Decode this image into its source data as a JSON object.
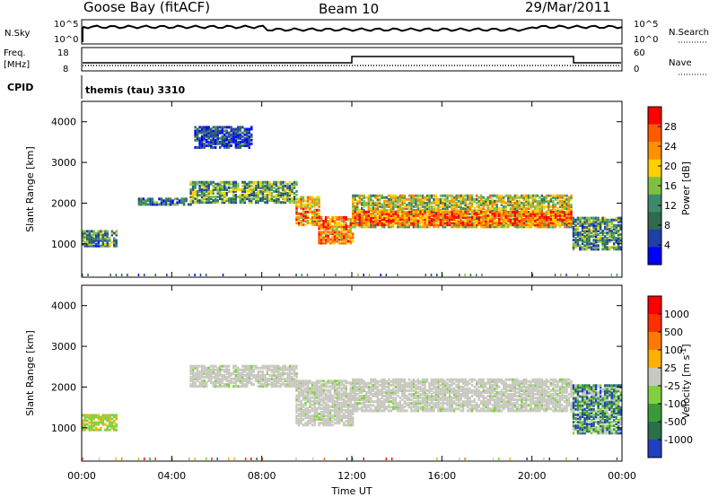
{
  "header": {
    "station": "Goose Bay (fitACF)",
    "beam": "Beam 10",
    "date": "29/Mar/2011"
  },
  "summary_panel": {
    "left_label_1": "N.Sky",
    "left_ticks_1": [
      "10^5",
      "10^0"
    ],
    "right_ticks_1": [
      "10^5",
      "10^0"
    ],
    "right_label_1": "N.Search",
    "left_label_2a": "Freq.",
    "left_label_2b": "[MHz]",
    "left_ticks_2": [
      "18",
      "8"
    ],
    "right_ticks_2": [
      "60",
      "0"
    ],
    "right_label_2": "Nave",
    "cpid_label": "CPID",
    "cpid_value": "themis (tau) 3310"
  },
  "colors": {
    "power_scale": [
      "#0000ff",
      "#1f3fa8",
      "#2e6a50",
      "#3d8a6a",
      "#80c040",
      "#ffd000",
      "#ff9000",
      "#ff5a00",
      "#ff0000"
    ],
    "velocity_scale": [
      "#2040c0",
      "#2a6e4a",
      "#3a9a3a",
      "#80d040",
      "#c8c8c0",
      "#ffb000",
      "#ff7a00",
      "#ff3000",
      "#ff0000"
    ]
  },
  "chart_data": [
    {
      "type": "heatmap",
      "title": "",
      "ylabel": "Slant Range [km]",
      "xlabel": "",
      "ylim": [
        180,
        4500
      ],
      "yticks": [
        "1000",
        "2000",
        "3000",
        "4000"
      ],
      "colorbar_label": "Power [dB]",
      "colorbar_ticks": [
        "28",
        "24",
        "20",
        "16",
        "12",
        "8",
        "4"
      ],
      "colorbar_range": [
        0,
        32
      ],
      "bands": [
        {
          "t0": 0.0,
          "t1": 1.6,
          "r0": 980,
          "r1": 1350,
          "level": 0.35
        },
        {
          "t0": 2.5,
          "t1": 4.8,
          "r0": 2000,
          "r1": 2150,
          "level": 0.25
        },
        {
          "t0": 4.8,
          "t1": 9.5,
          "r0": 2050,
          "r1": 2550,
          "level": 0.4
        },
        {
          "t0": 5.0,
          "t1": 7.5,
          "r0": 3400,
          "r1": 3900,
          "level": 0.15
        },
        {
          "t0": 9.5,
          "t1": 10.5,
          "r0": 1500,
          "r1": 2200,
          "level": 0.7
        },
        {
          "t0": 10.5,
          "t1": 12.0,
          "r0": 1050,
          "r1": 1700,
          "level": 0.75
        },
        {
          "t0": 12.0,
          "t1": 21.8,
          "r0": 1450,
          "r1": 2250,
          "level": 0.55
        },
        {
          "t0": 12.0,
          "t1": 21.8,
          "r0": 1500,
          "r1": 1850,
          "level": 0.8
        },
        {
          "t0": 21.8,
          "t1": 24.0,
          "r0": 900,
          "r1": 1700,
          "level": 0.35
        }
      ]
    },
    {
      "type": "heatmap",
      "title": "",
      "ylabel": "Slant Range [km]",
      "xlabel": "Time UT",
      "ylim": [
        180,
        4500
      ],
      "yticks": [
        "1000",
        "2000",
        "3000",
        "4000"
      ],
      "xticks": [
        "00:00",
        "04:00",
        "08:00",
        "12:00",
        "16:00",
        "20:00",
        "00:00"
      ],
      "xlim_hours": [
        0,
        24
      ],
      "colorbar_label": "Velocity [m s",
      "colorbar_label_sup": "-1",
      "colorbar_label_end": "]",
      "colorbar_ticks": [
        "1000",
        "500",
        "100",
        "25",
        "-25",
        "-100",
        "-500",
        "-1000"
      ],
      "bands": [
        {
          "t0": 0.0,
          "t1": 1.6,
          "r0": 980,
          "r1": 1350,
          "level": "green"
        },
        {
          "t0": 4.8,
          "t1": 9.5,
          "r0": 2050,
          "r1": 2550,
          "level": "gray"
        },
        {
          "t0": 9.5,
          "t1": 12.0,
          "r0": 1100,
          "r1": 2200,
          "level": "gray"
        },
        {
          "t0": 12.0,
          "t1": 21.8,
          "r0": 1450,
          "r1": 2250,
          "level": "gray"
        },
        {
          "t0": 21.8,
          "t1": 24.0,
          "r0": 900,
          "r1": 2100,
          "level": "mixed"
        }
      ]
    }
  ]
}
